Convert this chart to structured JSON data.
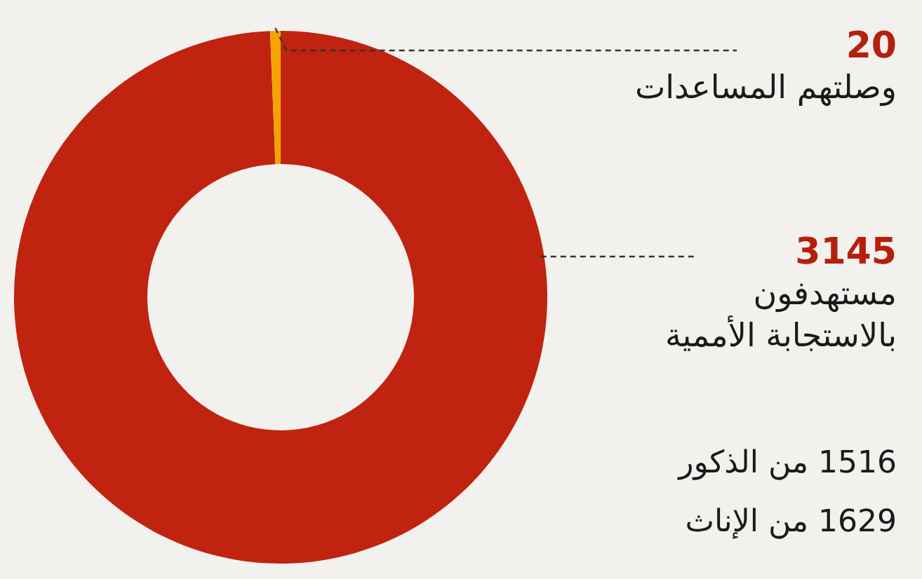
{
  "chart_data": {
    "type": "donut",
    "categories": [
      "وصلتهم المساعدات",
      "مستهدفون بالاستجابة الأممية"
    ],
    "values": [
      20,
      3145
    ],
    "colors": [
      "#f5a300",
      "#c0230f"
    ],
    "data_labels": true,
    "annotations": [
      "1516 من الذكور",
      "1629 من الإناث"
    ]
  }
}
